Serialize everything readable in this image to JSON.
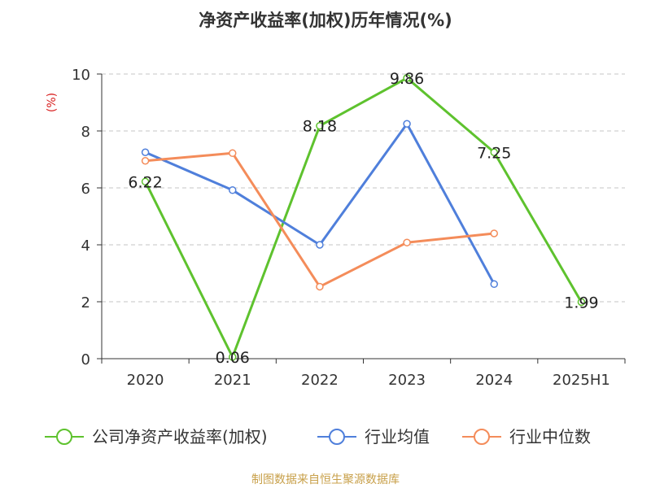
{
  "chart_data": {
    "type": "line",
    "title": "净资产收益率(加权)历年情况(%)",
    "ylabel": "(%)",
    "ylim": [
      0,
      10
    ],
    "yticks": [
      "0",
      "2",
      "4",
      "6",
      "8",
      "10"
    ],
    "categories": [
      "2020",
      "2021",
      "2022",
      "2023",
      "2024",
      "2025H1"
    ],
    "grid": true,
    "legend_position": "bottom",
    "series": [
      {
        "name": "公司净资产收益率(加权)",
        "color": "#5ec22e",
        "values": [
          6.22,
          0.06,
          8.18,
          9.86,
          7.25,
          1.99
        ],
        "labels": [
          "6.22",
          "0.06",
          "8.18",
          "9.86",
          "7.25",
          "1.99"
        ]
      },
      {
        "name": "行业均值",
        "color": "#4f7fdb",
        "values": [
          7.25,
          5.92,
          4.0,
          8.25,
          2.62,
          null
        ]
      },
      {
        "name": "行业中位数",
        "color": "#f48c5a",
        "values": [
          6.95,
          7.22,
          2.53,
          4.08,
          4.4,
          null
        ]
      }
    ]
  },
  "source": {
    "text": "制图数据来自恒生聚源数据库",
    "color": "#c8a04a"
  },
  "unit_color": "#d81e1e"
}
